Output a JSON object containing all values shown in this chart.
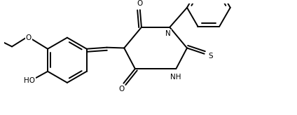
{
  "bg_color": "#ffffff",
  "line_color": "#000000",
  "lw": 1.4,
  "fs": 7.5,
  "fig_width": 4.24,
  "fig_height": 1.64,
  "dpi": 100,
  "xlim": [
    0,
    10
  ],
  "ylim": [
    0,
    3.87
  ]
}
